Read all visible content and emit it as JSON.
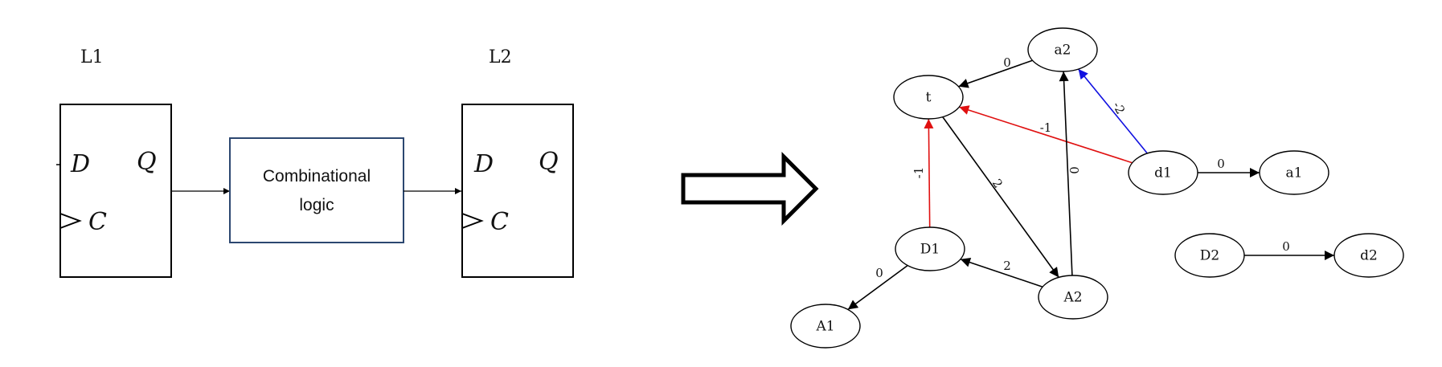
{
  "circuit": {
    "latch1": {
      "label": "L1",
      "d_pin": "D",
      "q_pin": "Q",
      "c_pin": "C"
    },
    "latch2": {
      "label": "L2",
      "d_pin": "D",
      "q_pin": "Q",
      "c_pin": "C"
    },
    "combinational": {
      "line1": "Combinational",
      "line2": "logic"
    }
  },
  "graph": {
    "nodes": [
      {
        "id": "a2",
        "label": "a2"
      },
      {
        "id": "t",
        "label": "t"
      },
      {
        "id": "d1",
        "label": "d1"
      },
      {
        "id": "a1",
        "label": "a1"
      },
      {
        "id": "D1",
        "label": "D1"
      },
      {
        "id": "A2",
        "label": "A2"
      },
      {
        "id": "A1",
        "label": "A1"
      },
      {
        "id": "D2",
        "label": "D2"
      },
      {
        "id": "d2",
        "label": "d2"
      }
    ],
    "edges": [
      {
        "id": "a2-t",
        "from": "a2",
        "to": "t",
        "weight": "0",
        "color": "#000000"
      },
      {
        "id": "d1-a2",
        "from": "d1",
        "to": "a2",
        "weight": "-2",
        "color": "#1010e0"
      },
      {
        "id": "d1-t",
        "from": "d1",
        "to": "t",
        "weight": "-1",
        "color": "#e01010"
      },
      {
        "id": "d1-a1",
        "from": "d1",
        "to": "a1",
        "weight": "0",
        "color": "#000000"
      },
      {
        "id": "t-A2",
        "from": "t",
        "to": "A2",
        "weight": "2",
        "color": "#000000"
      },
      {
        "id": "A2-a2",
        "from": "A2",
        "to": "a2",
        "weight": "0",
        "color": "#000000"
      },
      {
        "id": "D1-t",
        "from": "D1",
        "to": "t",
        "weight": "-1",
        "color": "#e01010"
      },
      {
        "id": "A2-D1",
        "from": "A2",
        "to": "D1",
        "weight": "2",
        "color": "#000000"
      },
      {
        "id": "D1-A1",
        "from": "D1",
        "to": "A1",
        "weight": "0",
        "color": "#000000"
      },
      {
        "id": "D2-d2",
        "from": "D2",
        "to": "d2",
        "weight": "0",
        "color": "#000000"
      }
    ]
  }
}
